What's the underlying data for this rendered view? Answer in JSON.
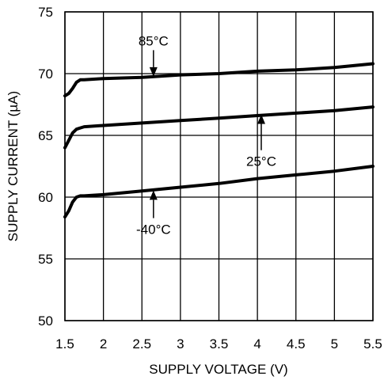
{
  "chart_data": {
    "type": "line",
    "title": "",
    "xlabel": "SUPPLY VOLTAGE (V)",
    "ylabel": "SUPPLY CURRENT (µA)",
    "xlim": [
      1.5,
      5.5
    ],
    "ylim": [
      50,
      75
    ],
    "xticks": [
      1.5,
      2,
      2.5,
      3,
      3.5,
      4,
      4.5,
      5,
      5.5
    ],
    "xtick_labels": [
      "1.5",
      "2",
      "2.5",
      "3",
      "3.5",
      "4",
      "4.5",
      "5",
      "5.5"
    ],
    "yticks": [
      50,
      55,
      60,
      65,
      70,
      75
    ],
    "ytick_labels": [
      "50",
      "55",
      "60",
      "65",
      "70",
      "75"
    ],
    "grid": true,
    "series": [
      {
        "name": "85°C",
        "x": [
          1.5,
          1.55,
          1.6,
          1.65,
          1.7,
          1.75,
          2.0,
          2.5,
          3.0,
          3.5,
          4.0,
          4.5,
          5.0,
          5.5
        ],
        "y": [
          68.2,
          68.4,
          68.8,
          69.3,
          69.5,
          69.5,
          69.6,
          69.7,
          69.9,
          70.0,
          70.2,
          70.3,
          70.5,
          70.8
        ]
      },
      {
        "name": "25°C",
        "x": [
          1.5,
          1.55,
          1.6,
          1.65,
          1.7,
          1.75,
          2.0,
          2.5,
          3.0,
          3.5,
          4.0,
          4.5,
          5.0,
          5.5
        ],
        "y": [
          64.0,
          64.6,
          65.2,
          65.5,
          65.6,
          65.7,
          65.8,
          66.0,
          66.2,
          66.4,
          66.6,
          66.8,
          67.0,
          67.3
        ]
      },
      {
        "name": "-40°C",
        "x": [
          1.5,
          1.55,
          1.6,
          1.65,
          1.7,
          1.75,
          2.0,
          2.5,
          3.0,
          3.5,
          4.0,
          4.5,
          5.0,
          5.5
        ],
        "y": [
          58.4,
          58.9,
          59.6,
          60.0,
          60.1,
          60.1,
          60.2,
          60.5,
          60.8,
          61.1,
          61.5,
          61.8,
          62.1,
          62.5
        ]
      }
    ],
    "annotations": [
      {
        "text": "85°C",
        "arrow_x": 2.65,
        "arrow_tip_y": 69.75,
        "arrow_tail_y": 71.9,
        "direction": "down"
      },
      {
        "text": "25°C",
        "arrow_x": 4.05,
        "arrow_tip_y": 66.7,
        "arrow_tail_y": 63.8,
        "direction": "up"
      },
      {
        "text": "-40°C",
        "arrow_x": 2.65,
        "arrow_tip_y": 60.55,
        "arrow_tail_y": 58.3,
        "direction": "up"
      }
    ]
  }
}
